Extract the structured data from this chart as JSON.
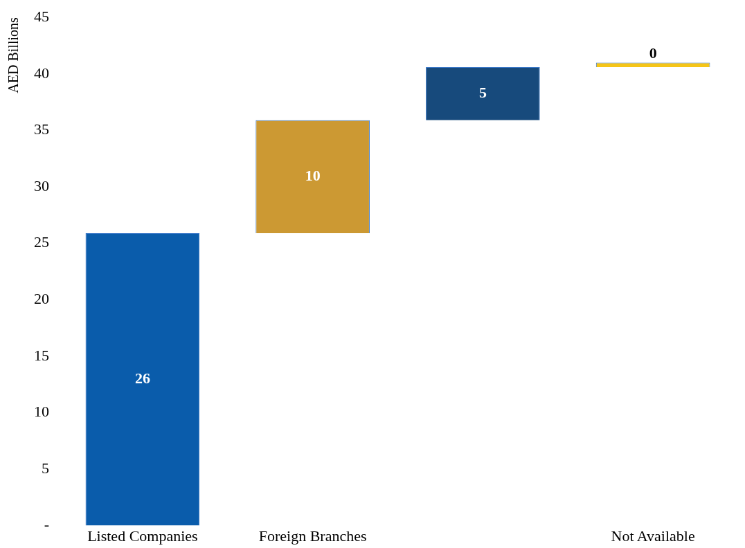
{
  "chart_data": {
    "type": "bar",
    "ylabel": "AED Billions",
    "categories": [
      "Listed Companies",
      "Foreign Branches",
      null,
      "Not Available"
    ],
    "values": [
      25.9,
      10.0,
      4.7,
      0.4
    ],
    "base": [
      0,
      25.9,
      35.9,
      40.6
    ],
    "value_labels": [
      "26",
      "10",
      "5",
      "0"
    ],
    "colors": [
      "#0a5cab",
      "#cc9933",
      "#174a7c",
      "#f5c518"
    ],
    "ylim": [
      0,
      45
    ],
    "yticks": [
      {
        "value": 0,
        "label": "-"
      },
      5,
      10,
      15,
      20,
      25,
      30,
      35,
      40,
      45
    ],
    "grid": false,
    "legend": false
  }
}
